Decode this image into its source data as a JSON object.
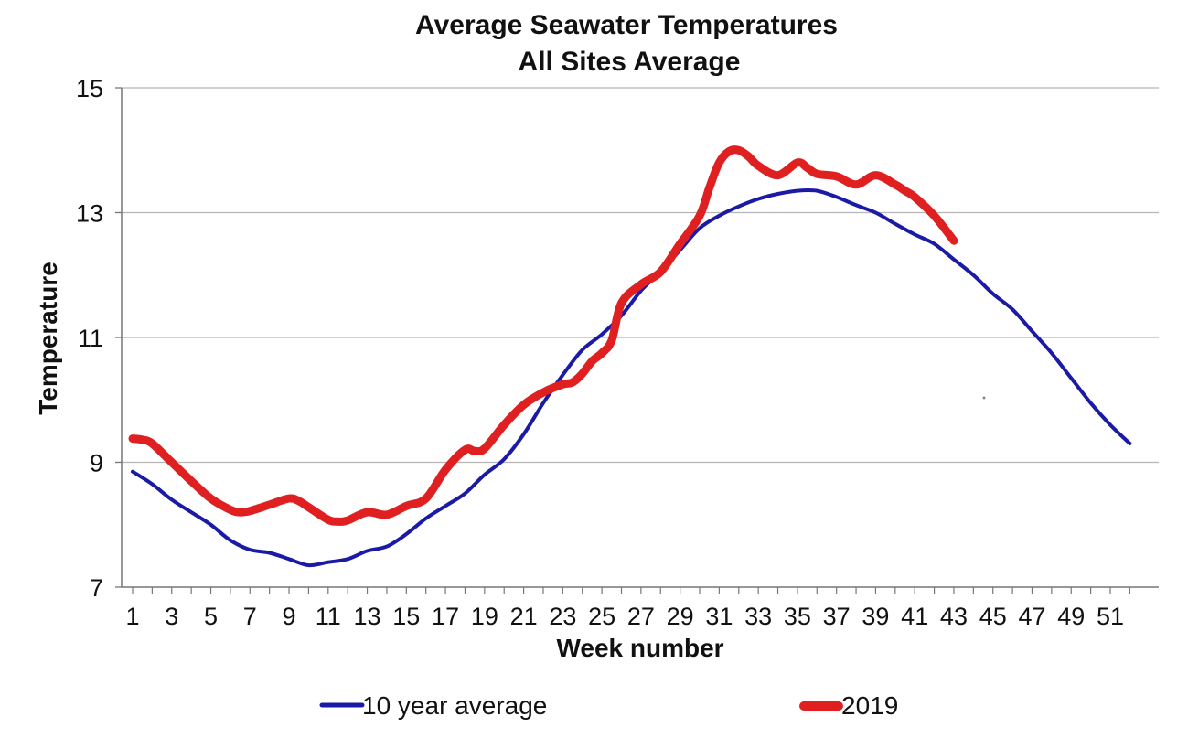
{
  "chart_data": {
    "type": "line",
    "title": "Average Seawater Temperatures",
    "subtitle": "All Sites Average",
    "xlabel": "Week number",
    "ylabel": "Temperature",
    "xlim": [
      1,
      52
    ],
    "ylim": [
      7,
      15
    ],
    "y_ticks": [
      "7",
      "9",
      "11",
      "13",
      "15"
    ],
    "x_tick_values": [
      1,
      3,
      5,
      7,
      9,
      11,
      13,
      15,
      17,
      19,
      21,
      23,
      25,
      27,
      29,
      31,
      33,
      35,
      37,
      39,
      41,
      43,
      45,
      47,
      49,
      51
    ],
    "x_tick_labels": [
      "1",
      "3",
      "5",
      "7",
      "9",
      "11",
      "13",
      "15",
      "17",
      "19",
      "21",
      "23",
      "25",
      "27",
      "29",
      "31",
      "33",
      "35",
      "37",
      "39",
      "41",
      "43",
      "45",
      "47",
      "49",
      "51"
    ],
    "grid": "horizontal",
    "legend_position": "bottom",
    "series": [
      {
        "name": "10 year average",
        "color": "#1a1aa6",
        "x": [
          1,
          2,
          3,
          4,
          5,
          6,
          7,
          8,
          9,
          10,
          11,
          12,
          13,
          14,
          15,
          16,
          17,
          18,
          19,
          20,
          21,
          22,
          23,
          24,
          25,
          26,
          27,
          28,
          29,
          30,
          31,
          32,
          33,
          34,
          35,
          36,
          37,
          38,
          39,
          40,
          41,
          42,
          43,
          44,
          45,
          46,
          47,
          48,
          49,
          50,
          51,
          52
        ],
        "values": [
          8.85,
          8.65,
          8.4,
          8.2,
          8.0,
          7.75,
          7.6,
          7.55,
          7.45,
          7.35,
          7.4,
          7.45,
          7.58,
          7.65,
          7.85,
          8.1,
          8.3,
          8.5,
          8.8,
          9.05,
          9.45,
          9.95,
          10.4,
          10.8,
          11.05,
          11.35,
          11.75,
          12.05,
          12.4,
          12.75,
          12.95,
          13.1,
          13.22,
          13.3,
          13.35,
          13.35,
          13.25,
          13.12,
          13.0,
          12.82,
          12.65,
          12.5,
          12.25,
          12.0,
          11.7,
          11.45,
          11.1,
          10.75,
          10.35,
          9.95,
          9.6,
          9.3
        ]
      },
      {
        "name": "2019",
        "color": "#e02020",
        "x": [
          1,
          1.5,
          2,
          3,
          4,
          5,
          6,
          6.5,
          7,
          8,
          9,
          9.5,
          10,
          11,
          11.5,
          12,
          13,
          14,
          15,
          16,
          17,
          18,
          18.5,
          19,
          20,
          21,
          22,
          23,
          23.5,
          24,
          24.5,
          25,
          25.5,
          26,
          27,
          28,
          29,
          30,
          30.5,
          31,
          31.5,
          32,
          32.5,
          33,
          34,
          35,
          35.5,
          36,
          37,
          38,
          39,
          40,
          40.5,
          41,
          42,
          43
        ],
        "values": [
          9.38,
          9.36,
          9.3,
          9.0,
          8.7,
          8.42,
          8.24,
          8.2,
          8.22,
          8.32,
          8.42,
          8.38,
          8.28,
          8.08,
          8.05,
          8.07,
          8.2,
          8.16,
          8.3,
          8.42,
          8.88,
          9.2,
          9.18,
          9.22,
          9.6,
          9.92,
          10.12,
          10.25,
          10.28,
          10.42,
          10.62,
          10.75,
          10.95,
          11.55,
          11.85,
          12.05,
          12.5,
          12.95,
          13.4,
          13.8,
          13.98,
          14.0,
          13.9,
          13.75,
          13.6,
          13.8,
          13.72,
          13.62,
          13.58,
          13.45,
          13.6,
          13.45,
          13.35,
          13.25,
          12.95,
          12.55
        ]
      }
    ]
  }
}
